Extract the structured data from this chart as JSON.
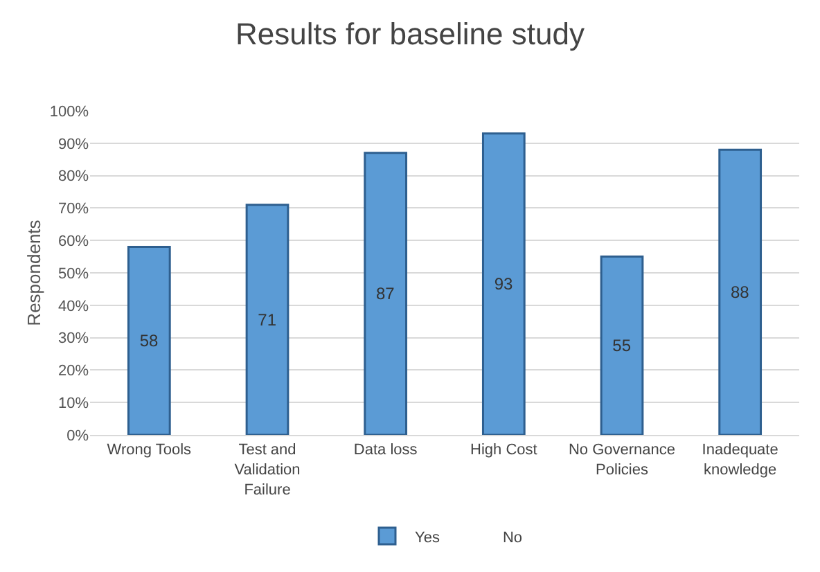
{
  "chart_data": {
    "type": "bar",
    "title": "Results for baseline study",
    "ylabel": "Respondents",
    "categories": [
      "Wrong Tools",
      "Test and Validation Failure",
      "Data loss",
      "High Cost",
      "No Governance Policies",
      "Inadequate knowledge"
    ],
    "series": [
      {
        "name": "Yes",
        "color": "#5b9bd5",
        "values": [
          58,
          71,
          87,
          93,
          55,
          88
        ]
      },
      {
        "name": "No",
        "values": [
          null,
          null,
          null,
          null,
          null,
          null
        ]
      }
    ],
    "ylim": [
      0,
      100
    ],
    "yticks": [
      {
        "value": 0,
        "label": "0%"
      },
      {
        "value": 10,
        "label": "10%"
      },
      {
        "value": 20,
        "label": "20%"
      },
      {
        "value": 30,
        "label": "30%"
      },
      {
        "value": 40,
        "label": "40%"
      },
      {
        "value": 50,
        "label": "50%"
      },
      {
        "value": 60,
        "label": "60%"
      },
      {
        "value": 70,
        "label": "70%"
      },
      {
        "value": 80,
        "label": "80%"
      },
      {
        "value": 90,
        "label": "90%"
      },
      {
        "value": 100,
        "label": "100%"
      }
    ],
    "data_labels": true,
    "grid": "y",
    "legend": "bottom"
  }
}
